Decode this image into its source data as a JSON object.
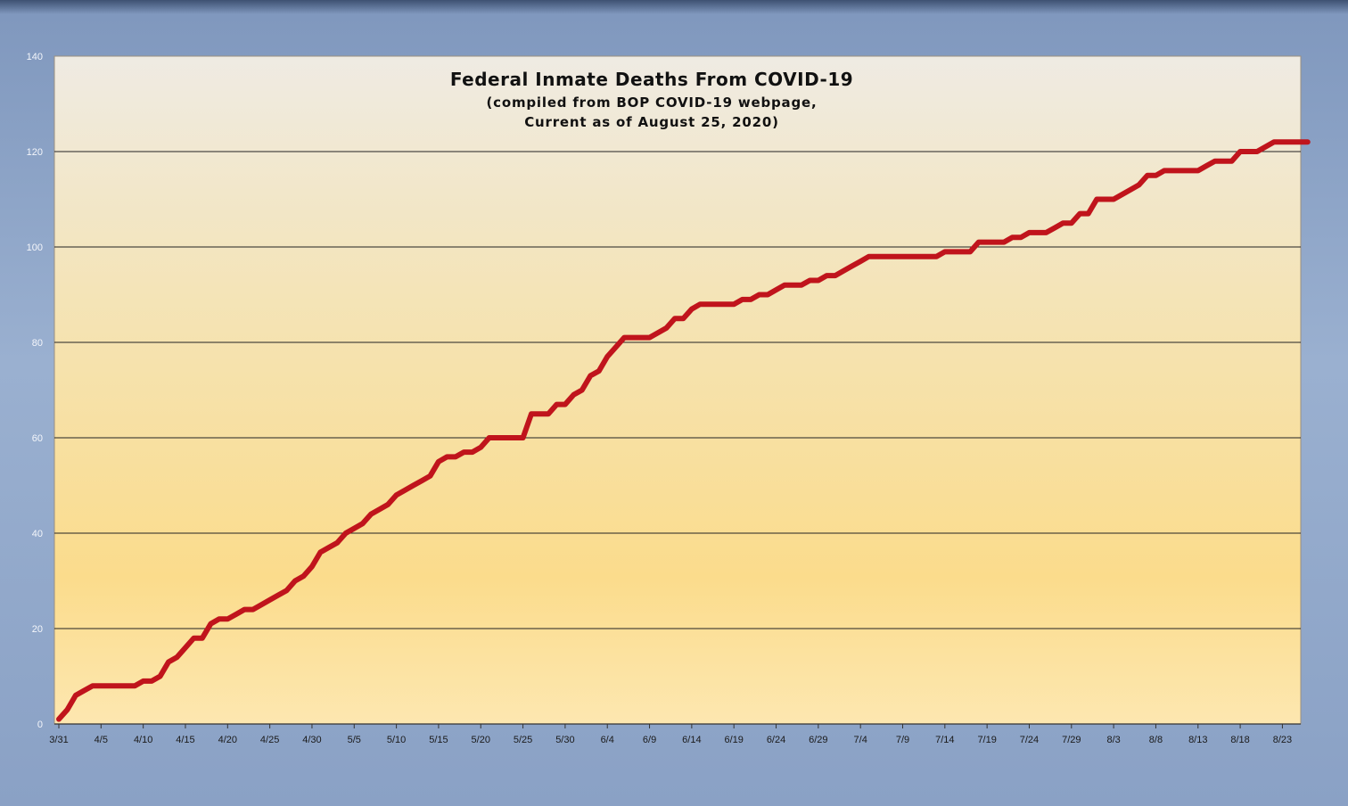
{
  "chart_data": {
    "type": "line",
    "title": "Federal Inmate Deaths From COVID-19",
    "subtitle_lines": [
      "(compiled from BOP COVID-19 webpage,",
      "Current as of August 25, 2020)"
    ],
    "xlabel": "",
    "ylabel": "",
    "ylim": [
      0,
      140
    ],
    "yticks": [
      0,
      20,
      40,
      60,
      80,
      100,
      120,
      140
    ],
    "xtick_labels": [
      "3/31",
      "4/5",
      "4/10",
      "4/15",
      "4/20",
      "4/25",
      "4/30",
      "5/5",
      "5/10",
      "5/15",
      "5/20",
      "5/25",
      "5/30",
      "6/4",
      "6/9",
      "6/14",
      "6/19",
      "6/24",
      "6/29",
      "7/4",
      "7/9",
      "7/14",
      "7/19",
      "7/24",
      "7/29",
      "8/3",
      "8/8",
      "8/13",
      "8/18",
      "8/23"
    ],
    "grid": true,
    "x_start": "3/31/2020",
    "series": [
      {
        "color": "#c0141c",
        "values": [
          1,
          3,
          6,
          7,
          8,
          8,
          8,
          8,
          8,
          8,
          9,
          9,
          10,
          13,
          14,
          16,
          18,
          18,
          21,
          22,
          22,
          23,
          24,
          24,
          25,
          26,
          27,
          28,
          30,
          31,
          33,
          36,
          37,
          38,
          40,
          41,
          42,
          44,
          45,
          46,
          48,
          49,
          50,
          51,
          52,
          55,
          56,
          56,
          57,
          57,
          58,
          60,
          60,
          60,
          60,
          60,
          65,
          65,
          65,
          67,
          67,
          69,
          70,
          73,
          74,
          77,
          79,
          81,
          81,
          81,
          81,
          82,
          83,
          85,
          85,
          87,
          88,
          88,
          88,
          88,
          88,
          89,
          89,
          90,
          90,
          91,
          92,
          92,
          92,
          93,
          93,
          94,
          94,
          95,
          96,
          97,
          98,
          98,
          98,
          98,
          98,
          98,
          98,
          98,
          98,
          99,
          99,
          99,
          99,
          101,
          101,
          101,
          101,
          102,
          102,
          103,
          103,
          103,
          104,
          105,
          105,
          107,
          107,
          110,
          110,
          110,
          111,
          112,
          113,
          115,
          115,
          116,
          116,
          116,
          116,
          116,
          117,
          118,
          118,
          118,
          120,
          120,
          120,
          121,
          122,
          122,
          122,
          122,
          122
        ]
      }
    ]
  }
}
